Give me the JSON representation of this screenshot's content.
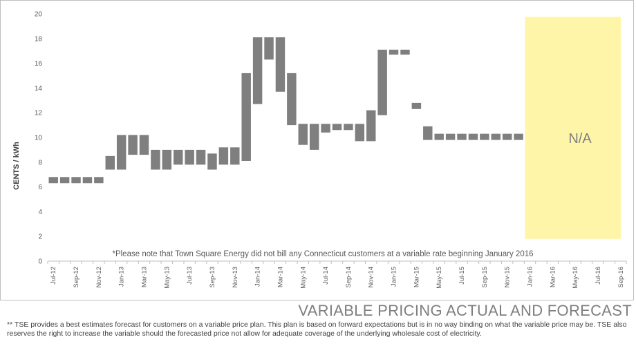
{
  "chart_data": {
    "type": "bar",
    "title": "VARIABLE PRICING ACTUAL AND FORECAST",
    "ylabel": "CENTS / kWh",
    "xlabel": "",
    "ylim": [
      0,
      20
    ],
    "yticks": [
      0,
      2,
      4,
      6,
      8,
      10,
      12,
      14,
      16,
      18,
      20
    ],
    "grid": false,
    "categories": [
      "Jul-12",
      "Aug-12",
      "Sep-12",
      "Oct-12",
      "Nov-12",
      "Dec-12",
      "Jan-13",
      "Feb-13",
      "Mar-13",
      "Apr-13",
      "May-13",
      "Jun-13",
      "Jul-13",
      "Aug-13",
      "Sep-13",
      "Oct-13",
      "Nov-13",
      "Dec-13",
      "Jan-14",
      "Feb-14",
      "Mar-14",
      "Apr-14",
      "May-14",
      "Jun-14",
      "Jul-14",
      "Aug-14",
      "Sep-14",
      "Oct-14",
      "Nov-14",
      "Dec-14",
      "Jan-15",
      "Feb-15",
      "Mar-15",
      "Apr-15",
      "May-15",
      "Jun-15",
      "Jul-15",
      "Aug-15",
      "Sep-15",
      "Oct-15",
      "Nov-15",
      "Dec-15",
      "Jan-16",
      "Feb-16",
      "Mar-16",
      "Apr-16",
      "May-16",
      "Jun-16",
      "Jul-16",
      "Aug-16",
      "Sep-16"
    ],
    "tick_labels": [
      "Jul-12",
      "Sep-12",
      "Nov-12",
      "Jan-13",
      "Mar-13",
      "May-13",
      "Jul-13",
      "Sep-13",
      "Nov-13",
      "Jan-14",
      "Mar-14",
      "May-14",
      "Jul-14",
      "Sep-14",
      "Nov-14",
      "Jan-15",
      "Mar-15",
      "May-15",
      "Jul-15",
      "Sep-15",
      "Nov-15",
      "Jan-16",
      "Mar-16",
      "May-16",
      "Jul-16",
      "Sep-16"
    ],
    "series": [
      {
        "low": [
          6.3,
          6.3,
          6.3,
          6.3,
          6.3,
          7.4,
          7.4,
          8.6,
          8.6,
          7.4,
          7.4,
          7.8,
          7.8,
          7.8,
          7.4,
          7.8,
          7.8,
          8.1,
          12.7,
          16.3,
          13.7,
          11.0,
          9.4,
          9.0,
          10.4,
          10.6,
          10.6,
          9.7,
          9.7,
          11.8,
          16.7,
          16.7,
          12.3,
          9.8,
          9.8,
          9.8,
          9.8,
          9.8,
          9.8,
          9.8,
          9.8,
          9.8,
          null,
          null,
          null,
          null,
          null,
          null,
          null,
          null,
          null
        ],
        "high": [
          6.8,
          6.8,
          6.8,
          6.8,
          6.8,
          8.5,
          10.2,
          10.2,
          10.2,
          9.0,
          9.0,
          9.0,
          9.0,
          9.0,
          8.7,
          9.2,
          9.2,
          15.2,
          18.1,
          18.1,
          18.1,
          15.2,
          11.1,
          11.1,
          11.1,
          11.1,
          11.1,
          11.1,
          12.2,
          17.1,
          17.1,
          17.1,
          12.8,
          10.9,
          10.3,
          10.3,
          10.3,
          10.3,
          10.3,
          10.3,
          10.3,
          10.3,
          null,
          null,
          null,
          null,
          null,
          null,
          null,
          null,
          null
        ]
      }
    ],
    "bar_color": "#7f7f7f",
    "na_region": {
      "from": "Jan-16",
      "to": "Sep-16",
      "label": "N/A",
      "color": "#fff5a8"
    },
    "note": "*Please note that Town Square Energy did not bill any Connecticut customers at a variable rate beginning January 2016"
  },
  "disclaimer": "** TSE provides a best estimates forecast for customers on a variable price plan. This plan is based on forward expectations but is in no way binding on what the variable price may be.  TSE also reserves the right to increase the variable should the  forecasted price not allow for adequate coverage of the underlying wholesale cost of electricity."
}
